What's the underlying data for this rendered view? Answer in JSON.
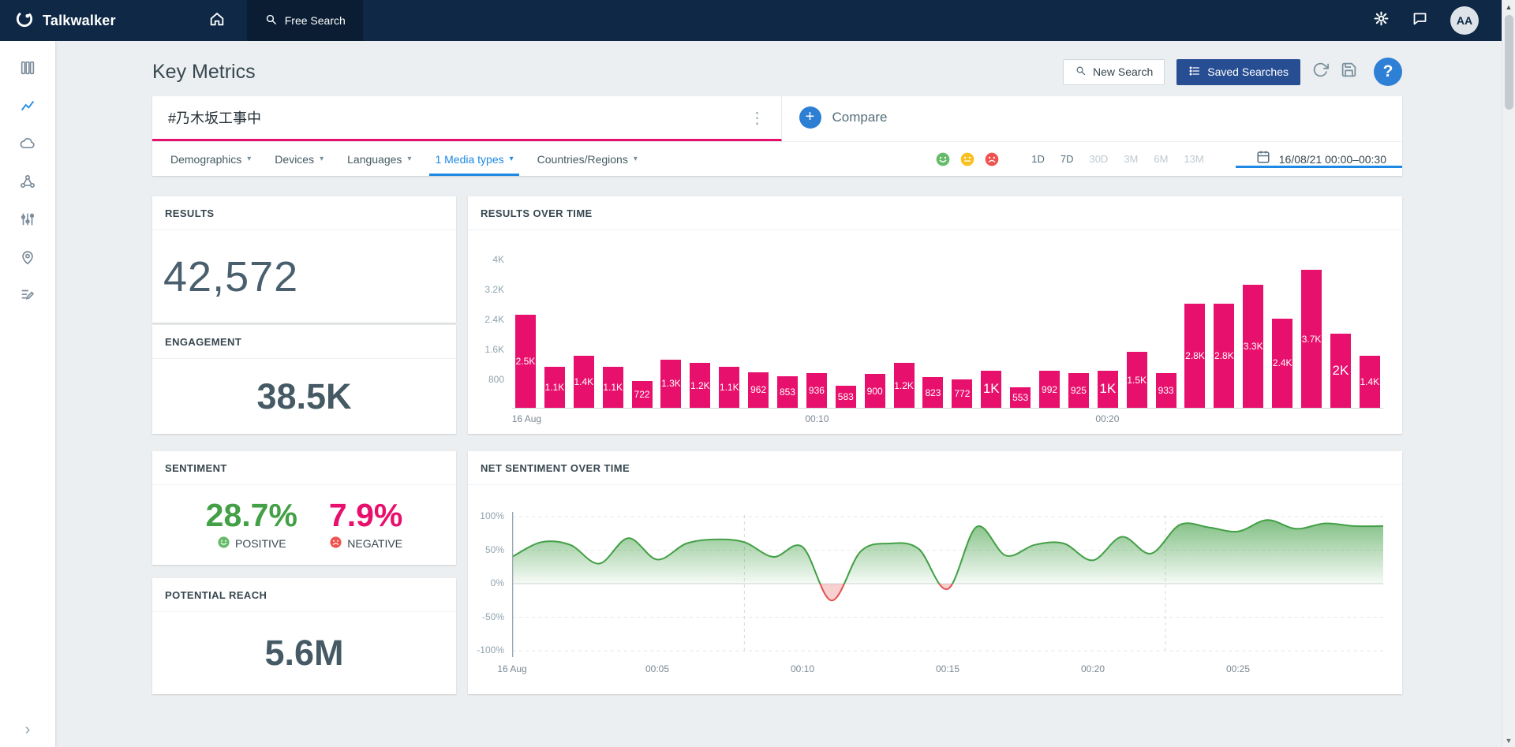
{
  "navbar": {
    "brand": "Talkwalker",
    "free_search_label": "Free Search",
    "avatar_initials": "AA"
  },
  "header": {
    "title": "Key Metrics",
    "new_search_label": "New Search",
    "saved_searches_label": "Saved Searches"
  },
  "search": {
    "query": "#乃木坂工事中",
    "compare_label": "Compare"
  },
  "filters": {
    "menus": [
      {
        "label": "Demographics",
        "active": false
      },
      {
        "label": "Devices",
        "active": false
      },
      {
        "label": "Languages",
        "active": false
      },
      {
        "label": "1 Media types",
        "active": true
      },
      {
        "label": "Countries/Regions",
        "active": false
      }
    ],
    "time_ranges": [
      {
        "label": "1D",
        "muted": false
      },
      {
        "label": "7D",
        "muted": false
      },
      {
        "label": "30D",
        "muted": true
      },
      {
        "label": "3M",
        "muted": true
      },
      {
        "label": "6M",
        "muted": true
      },
      {
        "label": "13M",
        "muted": true
      }
    ],
    "date_range": "16/08/21 00:00–00:30"
  },
  "cards": {
    "results": {
      "title": "RESULTS",
      "value": "42,572"
    },
    "engagement": {
      "title": "ENGAGEMENT",
      "value": "38.5K"
    },
    "sentiment": {
      "title": "SENTIMENT",
      "positive_value": "28.7%",
      "positive_label": "POSITIVE",
      "negative_value": "7.9%",
      "negative_label": "NEGATIVE"
    },
    "reach": {
      "title": "POTENTIAL REACH",
      "value": "5.6M"
    }
  },
  "chart_data": [
    {
      "type": "bar",
      "title": "RESULTS OVER TIME",
      "ylim": [
        0,
        4000
      ],
      "yticks": [
        {
          "value": 800,
          "label": "800"
        },
        {
          "value": 1600,
          "label": "1.6K"
        },
        {
          "value": 2400,
          "label": "2.4K"
        },
        {
          "value": 3200,
          "label": "3.2K"
        },
        {
          "value": 4000,
          "label": "4K"
        }
      ],
      "x_ticks": [
        {
          "index": 0,
          "label": "16 Aug"
        },
        {
          "index": 10,
          "label": "00:10"
        },
        {
          "index": 20,
          "label": "00:20"
        }
      ],
      "values": [
        2500,
        1100,
        1400,
        1100,
        722,
        1300,
        1200,
        1100,
        962,
        853,
        936,
        583,
        900,
        1200,
        823,
        772,
        1000,
        553,
        992,
        925,
        1000,
        1500,
        933,
        2800,
        2800,
        3300,
        2400,
        3700,
        2000,
        1400
      ],
      "bar_labels": [
        "2.5K",
        "1.1K",
        "1.4K",
        "1.1K",
        "722",
        "1.3K",
        "1.2K",
        "1.1K",
        "962",
        "853",
        "936",
        "583",
        "900",
        "1.2K",
        "823",
        "772",
        "1K",
        "553",
        "992",
        "925",
        "1K",
        "1.5K",
        "933",
        "2.8K",
        "2.8K",
        "3.3K",
        "2.4K",
        "3.7K",
        "2K",
        "1.4K"
      ],
      "bar_color": "#e8106d"
    },
    {
      "type": "area",
      "title": "NET SENTIMENT OVER TIME",
      "ylim": [
        -100,
        100
      ],
      "yticks": [
        {
          "value": 100,
          "label": "100%"
        },
        {
          "value": 50,
          "label": "50%"
        },
        {
          "value": 0,
          "label": "0%"
        },
        {
          "value": -50,
          "label": "-50%"
        },
        {
          "value": -100,
          "label": "-100%"
        }
      ],
      "x_ticks": [
        {
          "minute": 0,
          "label": "16 Aug"
        },
        {
          "minute": 5,
          "label": "00:05"
        },
        {
          "minute": 10,
          "label": "00:10"
        },
        {
          "minute": 15,
          "label": "00:15"
        },
        {
          "minute": 20,
          "label": "00:20"
        },
        {
          "minute": 25,
          "label": "00:25"
        }
      ],
      "x_span_minutes": 30,
      "values_percent": [
        40,
        62,
        58,
        30,
        68,
        36,
        60,
        66,
        62,
        40,
        55,
        -25,
        48,
        60,
        52,
        -8,
        85,
        42,
        58,
        60,
        35,
        70,
        45,
        88,
        84,
        78,
        95,
        82,
        90,
        86,
        86
      ],
      "positive_color": "#43a047",
      "negative_color": "#e05353"
    }
  ],
  "colors": {
    "brand_navy": "#0f2846",
    "accent_pink": "#e8106d",
    "accent_blue": "#1e88e5",
    "positive_green": "#43a047",
    "negative_red": "#ef5350"
  }
}
